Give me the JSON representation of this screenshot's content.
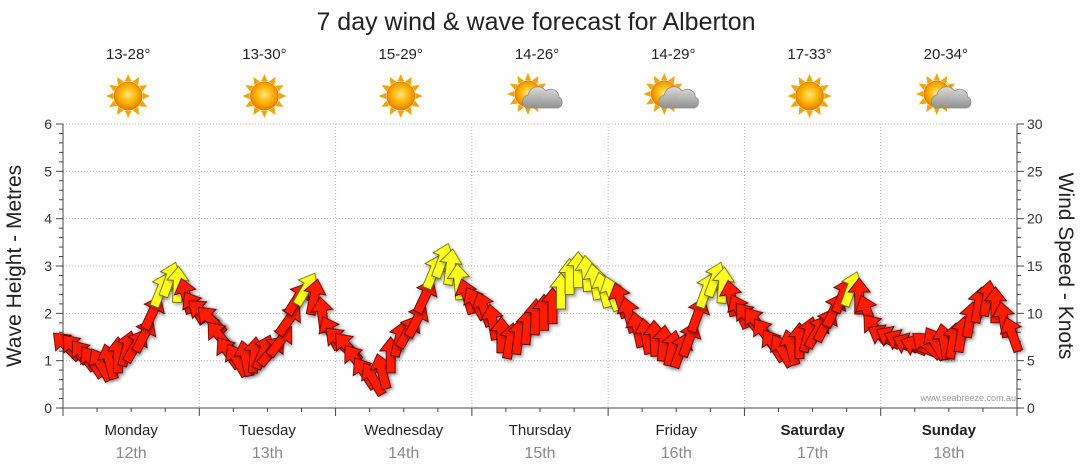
{
  "chart_data": {
    "type": "line",
    "title": "7 day wind & wave forecast for Alberton",
    "ylabel_left": "Wave Height - Metres",
    "ylabel_right": "Wind Speed - Knots",
    "ylim_left": [
      0,
      6
    ],
    "ylim_right": [
      0,
      30
    ],
    "yticks_left": [
      "0",
      "1",
      "2",
      "3",
      "4",
      "5",
      "6"
    ],
    "yticks_right": [
      "0",
      "5",
      "10",
      "15",
      "20",
      "25",
      "30"
    ],
    "credit": "www.seabreeze.com.au",
    "days": [
      {
        "day": "Monday",
        "date": "12th",
        "temp": "13-28°",
        "icon": "sun-icon",
        "bold": false
      },
      {
        "day": "Tuesday",
        "date": "13th",
        "temp": "13-30°",
        "icon": "sun-icon",
        "bold": false
      },
      {
        "day": "Wednesday",
        "date": "14th",
        "temp": "15-29°",
        "icon": "sun-icon",
        "bold": false
      },
      {
        "day": "Thursday",
        "date": "15th",
        "temp": "14-26°",
        "icon": "partly-cloudy-icon",
        "bold": false
      },
      {
        "day": "Friday",
        "date": "16th",
        "temp": "14-29°",
        "icon": "partly-cloudy-icon",
        "bold": false
      },
      {
        "day": "Saturday",
        "date": "17th",
        "temp": "17-33°",
        "icon": "sun-icon",
        "bold": true
      },
      {
        "day": "Sunday",
        "date": "18th",
        "temp": "20-34°",
        "icon": "partly-cloudy-icon",
        "bold": true
      }
    ],
    "wind_series": {
      "name": "Wind Speed (knots)",
      "x_hours": [
        0,
        6,
        12,
        18,
        24,
        30,
        36,
        42,
        48,
        54,
        60,
        66,
        72,
        78,
        84,
        90,
        96,
        102,
        108,
        114,
        120,
        126,
        132,
        138,
        144,
        150,
        156,
        162,
        168
      ],
      "speed": [
        6.5,
        4.5,
        6.5,
        13.5,
        10,
        5,
        6,
        12.5,
        7,
        3,
        8,
        15.5,
        11,
        7,
        10,
        14.5,
        12,
        7.5,
        6,
        13.5,
        9.5,
        6,
        8,
        12.5,
        7.5,
        6.5,
        7,
        11.5,
        7
      ],
      "direction_deg": [
        135,
        150,
        210,
        200,
        130,
        150,
        220,
        210,
        135,
        150,
        210,
        200,
        150,
        190,
        180,
        180,
        160,
        170,
        200,
        200,
        140,
        150,
        210,
        200,
        120,
        110,
        190,
        190,
        150
      ],
      "yellow_threshold_knots": 12
    }
  }
}
